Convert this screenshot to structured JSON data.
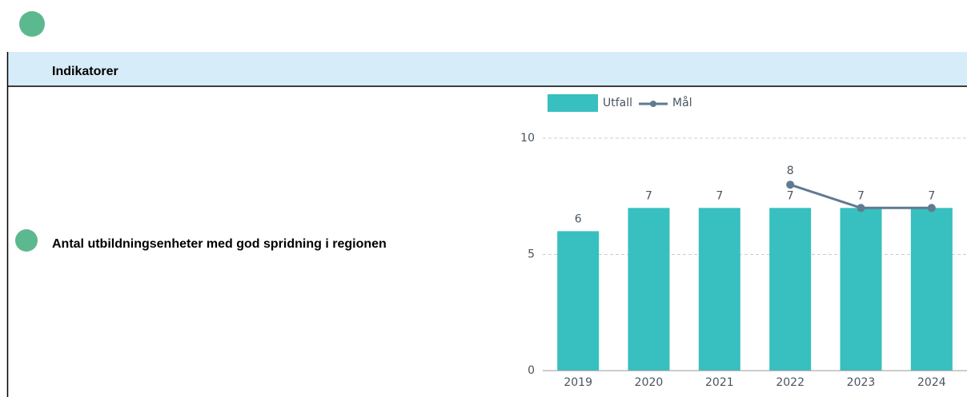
{
  "table": {
    "header": "Indikatorer",
    "indicator": "Antal utbildningsenheter med god spridning i regionen"
  },
  "chart_data": {
    "type": "bar",
    "categories": [
      "2019",
      "2020",
      "2021",
      "2022",
      "2023",
      "2024"
    ],
    "series": [
      {
        "name": "Utfall",
        "type": "bar",
        "color": "#38bfbf",
        "values": [
          6,
          7,
          7,
          7,
          7,
          7
        ]
      },
      {
        "name": "Mål",
        "type": "line",
        "color": "#5f7a91",
        "values": [
          null,
          null,
          null,
          8,
          7,
          7
        ]
      }
    ],
    "ylim": [
      0,
      10
    ],
    "yticks": [
      0,
      5,
      10
    ],
    "grid": true,
    "legend": "top"
  }
}
